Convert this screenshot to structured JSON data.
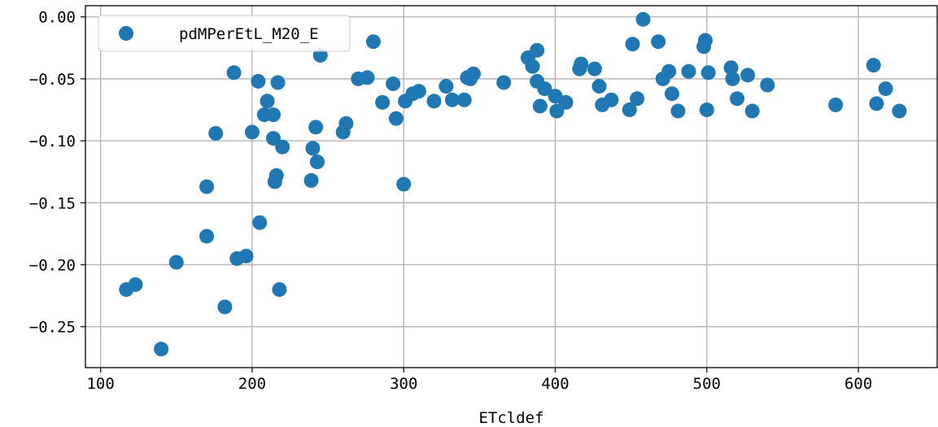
{
  "chart_data": {
    "type": "scatter",
    "title": "",
    "xlabel": "ETcldef",
    "ylabel": "",
    "xlim": [
      90,
      652
    ],
    "ylim": [
      -0.283,
      0.009
    ],
    "x_ticks": [
      100,
      200,
      300,
      400,
      500,
      600
    ],
    "x_tick_labels": [
      "100",
      "200",
      "300",
      "400",
      "500",
      "600"
    ],
    "y_ticks": [
      0.0,
      -0.05,
      -0.1,
      -0.15,
      -0.2,
      -0.25
    ],
    "y_tick_labels": [
      "0.00",
      "−0.05",
      "−0.10",
      "−0.15",
      "−0.20",
      "−0.25"
    ],
    "grid": true,
    "legend_position": "top-left",
    "series": [
      {
        "name": "pdMPerEtL_M20_E",
        "color": "#1f77b4",
        "points": [
          [
            117,
            -0.22
          ],
          [
            123,
            -0.216
          ],
          [
            140,
            -0.268
          ],
          [
            150,
            -0.198
          ],
          [
            170,
            -0.137
          ],
          [
            170,
            -0.177
          ],
          [
            176,
            -0.094
          ],
          [
            182,
            -0.234
          ],
          [
            188,
            -0.045
          ],
          [
            190,
            -0.195
          ],
          [
            196,
            -0.193
          ],
          [
            200,
            -0.093
          ],
          [
            204,
            -0.052
          ],
          [
            205,
            -0.166
          ],
          [
            208,
            -0.079
          ],
          [
            210,
            -0.068
          ],
          [
            214,
            -0.079
          ],
          [
            214,
            -0.098
          ],
          [
            215,
            -0.133
          ],
          [
            216,
            -0.128
          ],
          [
            217,
            -0.053
          ],
          [
            218,
            -0.22
          ],
          [
            220,
            -0.105
          ],
          [
            239,
            -0.132
          ],
          [
            240,
            -0.106
          ],
          [
            242,
            -0.089
          ],
          [
            243,
            -0.117
          ],
          [
            245,
            -0.031
          ],
          [
            260,
            -0.093
          ],
          [
            262,
            -0.086
          ],
          [
            270,
            -0.05
          ],
          [
            276,
            -0.049
          ],
          [
            280,
            -0.02
          ],
          [
            286,
            -0.069
          ],
          [
            293,
            -0.054
          ],
          [
            295,
            -0.082
          ],
          [
            300,
            -0.135
          ],
          [
            301,
            -0.068
          ],
          [
            306,
            -0.062
          ],
          [
            310,
            -0.06
          ],
          [
            320,
            -0.068
          ],
          [
            328,
            -0.056
          ],
          [
            332,
            -0.067
          ],
          [
            340,
            -0.067
          ],
          [
            342,
            -0.049
          ],
          [
            344,
            -0.05
          ],
          [
            346,
            -0.046
          ],
          [
            366,
            -0.053
          ],
          [
            382,
            -0.033
          ],
          [
            385,
            -0.04
          ],
          [
            388,
            -0.027
          ],
          [
            388,
            -0.052
          ],
          [
            390,
            -0.072
          ],
          [
            393,
            -0.058
          ],
          [
            400,
            -0.064
          ],
          [
            401,
            -0.076
          ],
          [
            407,
            -0.069
          ],
          [
            416,
            -0.042
          ],
          [
            417,
            -0.038
          ],
          [
            426,
            -0.042
          ],
          [
            429,
            -0.056
          ],
          [
            431,
            -0.071
          ],
          [
            437,
            -0.067
          ],
          [
            449,
            -0.075
          ],
          [
            451,
            -0.022
          ],
          [
            454,
            -0.066
          ],
          [
            458,
            -0.002
          ],
          [
            468,
            -0.02
          ],
          [
            471,
            -0.05
          ],
          [
            475,
            -0.044
          ],
          [
            477,
            -0.062
          ],
          [
            481,
            -0.076
          ],
          [
            488,
            -0.044
          ],
          [
            498,
            -0.024
          ],
          [
            499,
            -0.019
          ],
          [
            500,
            -0.075
          ],
          [
            501,
            -0.045
          ],
          [
            516,
            -0.041
          ],
          [
            517,
            -0.05
          ],
          [
            520,
            -0.066
          ],
          [
            527,
            -0.047
          ],
          [
            530,
            -0.076
          ],
          [
            540,
            -0.055
          ],
          [
            585,
            -0.071
          ],
          [
            610,
            -0.039
          ],
          [
            612,
            -0.07
          ],
          [
            618,
            -0.058
          ],
          [
            627,
            -0.076
          ]
        ]
      }
    ]
  }
}
